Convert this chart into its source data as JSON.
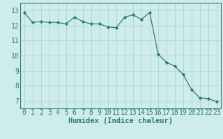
{
  "x": [
    0,
    1,
    2,
    3,
    4,
    5,
    6,
    7,
    8,
    9,
    10,
    11,
    12,
    13,
    14,
    15,
    16,
    17,
    18,
    19,
    20,
    21,
    22,
    23
  ],
  "y": [
    12.85,
    12.2,
    12.25,
    12.2,
    12.2,
    12.1,
    12.55,
    12.25,
    12.1,
    12.1,
    11.9,
    11.85,
    12.55,
    12.7,
    12.4,
    12.85,
    10.1,
    9.55,
    9.3,
    8.75,
    7.75,
    7.2,
    7.15,
    6.95
  ],
  "xlabel": "Humidex (Indice chaleur)",
  "bg_color": "#ceecea",
  "grid_color": "#b2d8d4",
  "line_color": "#2d7d6e",
  "marker_color": "#2d7d6e",
  "xlim": [
    -0.5,
    23.5
  ],
  "ylim": [
    6.5,
    13.5
  ],
  "yticks": [
    7,
    8,
    9,
    10,
    11,
    12,
    13
  ],
  "xticks": [
    0,
    1,
    2,
    3,
    4,
    5,
    6,
    7,
    8,
    9,
    10,
    11,
    12,
    13,
    14,
    15,
    16,
    17,
    18,
    19,
    20,
    21,
    22,
    23
  ],
  "xlabel_fontsize": 7.5,
  "tick_fontsize": 7,
  "fig_bg_color": "#ceecea"
}
